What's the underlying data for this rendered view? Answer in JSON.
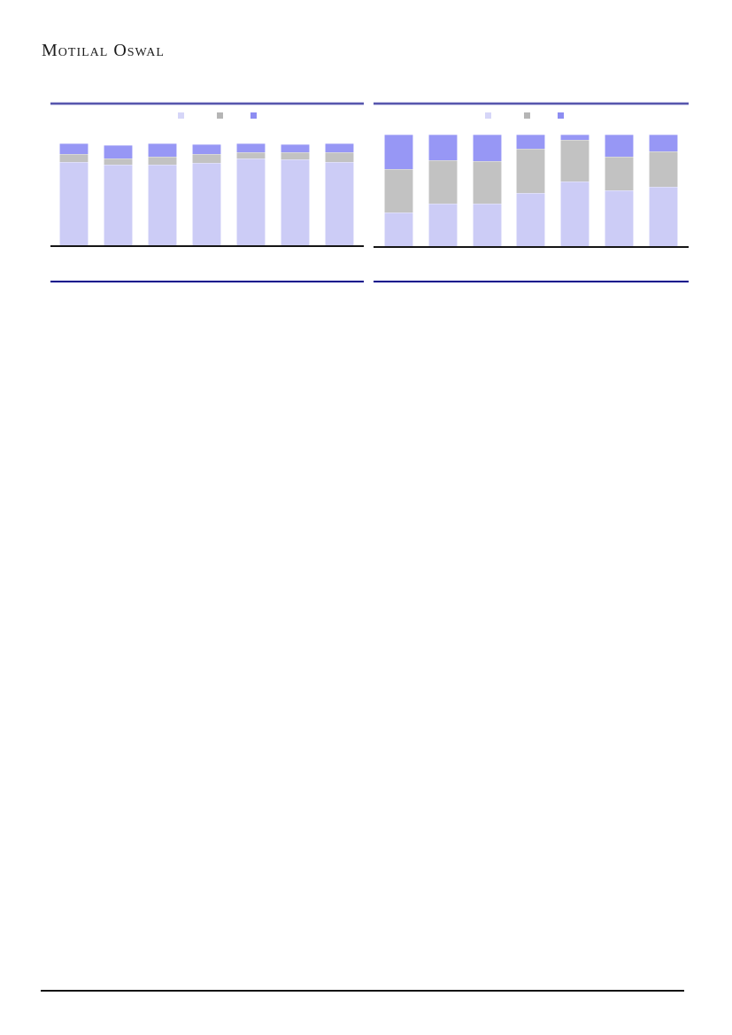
{
  "page": {
    "brand": "Motilal Oswal"
  },
  "chart_data": [
    {
      "type": "bar",
      "stacked": true,
      "unit": "percent-of-total",
      "title": "",
      "xlabel": "",
      "ylabel": "",
      "ylim": [
        0,
        100
      ],
      "grid": false,
      "legend_position": "top-center",
      "axis_tick_labels_visible": false,
      "categories": [
        "",
        "",
        "",
        "",
        "",
        "",
        ""
      ],
      "legend": [
        {
          "label": "",
          "color": "#d6d6f8"
        },
        {
          "label": "",
          "color": "#b5b5b5"
        },
        {
          "label": "",
          "color": "#8d8df2"
        }
      ],
      "series": [
        {
          "name": "bottom-lavender",
          "color": "#ccccf6",
          "values": [
            82,
            79,
            79,
            81,
            85,
            84,
            82
          ]
        },
        {
          "name": "middle-gray",
          "color": "#c2c2c2",
          "values": [
            8,
            6,
            8,
            9,
            6,
            7,
            9
          ]
        },
        {
          "name": "top-purple",
          "color": "#9797f5",
          "values": [
            10,
            13,
            13,
            9,
            9,
            8,
            9
          ]
        }
      ]
    },
    {
      "type": "bar",
      "stacked": true,
      "unit": "percent-of-total",
      "title": "",
      "xlabel": "",
      "ylabel": "",
      "ylim": [
        0,
        100
      ],
      "grid": false,
      "legend_position": "top-center",
      "axis_tick_labels_visible": false,
      "categories": [
        "",
        "",
        "",
        "",
        "",
        "",
        ""
      ],
      "legend": [
        {
          "label": "",
          "color": "#d6d6f8"
        },
        {
          "label": "",
          "color": "#b5b5b5"
        },
        {
          "label": "",
          "color": "#8d8df2"
        }
      ],
      "series": [
        {
          "name": "bottom-lavender",
          "color": "#ccccf6",
          "values": [
            30,
            38,
            38,
            48,
            58,
            50,
            53
          ]
        },
        {
          "name": "middle-gray",
          "color": "#c2c2c2",
          "values": [
            39,
            39,
            38,
            39,
            37,
            30,
            32
          ]
        },
        {
          "name": "top-purple",
          "color": "#9797f5",
          "values": [
            31,
            23,
            24,
            13,
            5,
            20,
            15
          ]
        }
      ]
    }
  ]
}
